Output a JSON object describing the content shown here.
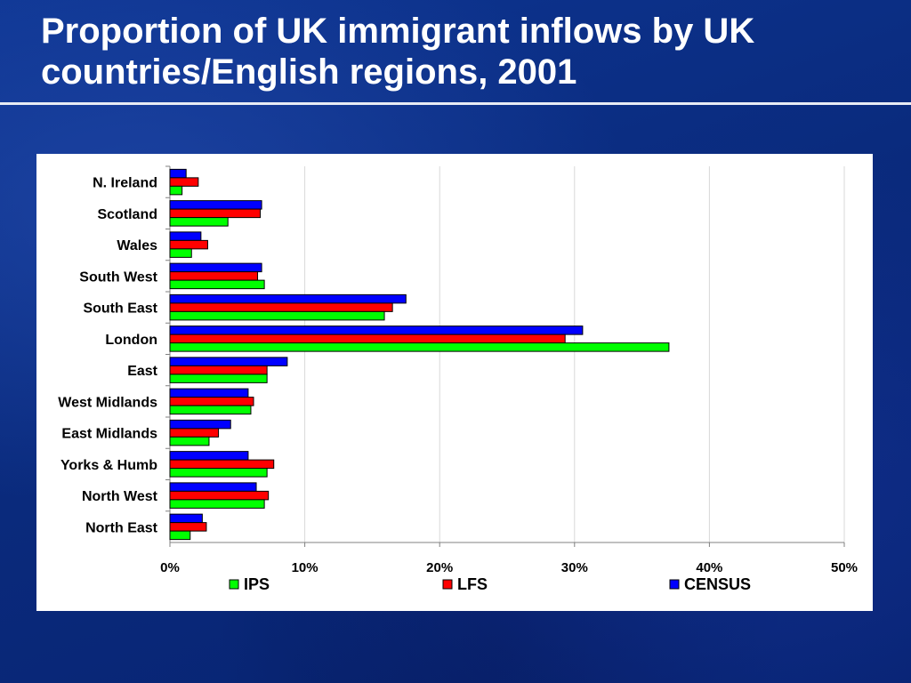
{
  "slide": {
    "title": "Proportion of UK immigrant inflows by UK countries/English regions, 2001"
  },
  "chart_data": {
    "type": "bar",
    "orientation": "horizontal",
    "title": "",
    "xlabel": "",
    "ylabel": "",
    "xlim": [
      0,
      50
    ],
    "x_ticks": [
      "0%",
      "10%",
      "20%",
      "30%",
      "40%",
      "50%"
    ],
    "grid": true,
    "legend_position": "bottom",
    "categories": [
      "N. Ireland",
      "Scotland",
      "Wales",
      "South West",
      "South East",
      "London",
      "East",
      "West Midlands",
      "East Midlands",
      "Yorks & Humb",
      "North West",
      "North East"
    ],
    "series": [
      {
        "name": "CENSUS",
        "color": "#0000ff",
        "values": [
          1.2,
          6.8,
          2.3,
          6.8,
          17.5,
          30.6,
          8.7,
          5.8,
          4.5,
          5.8,
          6.4,
          2.4
        ]
      },
      {
        "name": "LFS",
        "color": "#ff0000",
        "values": [
          2.1,
          6.7,
          2.8,
          6.5,
          16.5,
          29.3,
          7.2,
          6.2,
          3.6,
          7.7,
          7.3,
          2.7
        ]
      },
      {
        "name": "IPS",
        "color": "#00ff00",
        "values": [
          0.9,
          4.3,
          1.6,
          7.0,
          15.9,
          37.0,
          7.2,
          6.0,
          2.9,
          7.2,
          7.0,
          1.5
        ]
      }
    ],
    "legend_order": [
      "IPS",
      "LFS",
      "CENSUS"
    ]
  }
}
